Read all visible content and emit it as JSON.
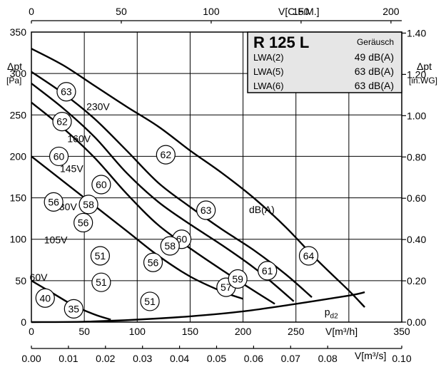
{
  "chart_data": {
    "type": "line",
    "title": "R 125 L",
    "noise_header": "Geräusch",
    "noise_table": [
      {
        "label": "LWA(2)",
        "value": "49 dB(A)"
      },
      {
        "label": "LWA(5)",
        "value": "63 dB(A)"
      },
      {
        "label": "LWA(6)",
        "value": "63 dB(A)"
      }
    ],
    "axes": {
      "bottom": {
        "label": "V[m³/h]",
        "range": [
          0,
          350
        ],
        "ticks": [
          0,
          50,
          100,
          150,
          200,
          250,
          350
        ]
      },
      "bottom2": {
        "label": "V[m³/s]",
        "range": [
          0,
          0.1
        ],
        "ticks": [
          "0.00",
          "0.01",
          "0.02",
          "0.03",
          "0.04",
          "0.05",
          "0.06",
          "0.07",
          "0.08",
          "0.10"
        ]
      },
      "top": {
        "label": "V[C.F.M.]",
        "range": [
          0,
          206
        ],
        "ticks": [
          0,
          50,
          100,
          150,
          200
        ]
      },
      "left": {
        "label": "Δpt",
        "unit": "[Pa]",
        "range": [
          0,
          350
        ],
        "ticks": [
          0,
          50,
          100,
          150,
          200,
          250,
          300,
          350
        ]
      },
      "right": {
        "label": "Δpt",
        "unit": "[in.WG]",
        "range": [
          0,
          1.405
        ],
        "ticks": [
          "0.00",
          "0.20",
          "0.40",
          "0.60",
          "0.80",
          "1.00",
          "1.20",
          "1.40"
        ]
      }
    },
    "grid": true,
    "series": [
      {
        "name": "230V",
        "points": [
          [
            0,
            330
          ],
          [
            30,
            310
          ],
          [
            60,
            285
          ],
          [
            90,
            260
          ],
          [
            120,
            236
          ],
          [
            150,
            207
          ],
          [
            180,
            180
          ],
          [
            210,
            150
          ],
          [
            240,
            115
          ],
          [
            270,
            75
          ],
          [
            300,
            38
          ],
          [
            315,
            18
          ]
        ]
      },
      {
        "name": "160V",
        "points": [
          [
            0,
            302
          ],
          [
            30,
            276
          ],
          [
            60,
            245
          ],
          [
            90,
            207
          ],
          [
            120,
            168
          ],
          [
            150,
            139
          ],
          [
            180,
            112
          ],
          [
            210,
            87
          ],
          [
            240,
            58
          ],
          [
            265,
            30
          ]
        ]
      },
      {
        "name": "145V",
        "points": [
          [
            0,
            288
          ],
          [
            30,
            258
          ],
          [
            60,
            223
          ],
          [
            90,
            180
          ],
          [
            120,
            145
          ],
          [
            150,
            118
          ],
          [
            180,
            93
          ],
          [
            210,
            66
          ],
          [
            230,
            45
          ],
          [
            248,
            25
          ]
        ]
      },
      {
        "name": "130V",
        "points": [
          [
            0,
            265
          ],
          [
            30,
            234
          ],
          [
            60,
            198
          ],
          [
            90,
            155
          ],
          [
            120,
            117
          ],
          [
            150,
            89
          ],
          [
            180,
            63
          ],
          [
            210,
            38
          ],
          [
            230,
            22
          ]
        ]
      },
      {
        "name": "105V",
        "points": [
          [
            0,
            200
          ],
          [
            30,
            170
          ],
          [
            60,
            140
          ],
          [
            90,
            110
          ],
          [
            120,
            80
          ],
          [
            150,
            55
          ],
          [
            180,
            37
          ],
          [
            200,
            28
          ]
        ]
      },
      {
        "name": "60V",
        "points": [
          [
            0,
            50
          ],
          [
            20,
            35
          ],
          [
            40,
            20
          ],
          [
            60,
            9
          ],
          [
            75,
            3
          ]
        ]
      },
      {
        "name": "pd2",
        "points": [
          [
            0,
            0
          ],
          [
            50,
            0.5
          ],
          [
            100,
            3
          ],
          [
            150,
            7
          ],
          [
            200,
            13
          ],
          [
            250,
            22
          ],
          [
            300,
            32
          ],
          [
            315,
            36
          ]
        ]
      }
    ],
    "series_labels": [
      {
        "text": "230V",
        "x": 63,
        "y": 256
      },
      {
        "text": "160V",
        "x": 45,
        "y": 217
      },
      {
        "text": "145V",
        "x": 38,
        "y": 181
      },
      {
        "text": "130V",
        "x": 32,
        "y": 135
      },
      {
        "text": "105V",
        "x": 23,
        "y": 95
      },
      {
        "text": "60V",
        "x": 0,
        "y": 50
      },
      {
        "text": "pd2",
        "x": 277,
        "y": 8
      }
    ],
    "sound_markers": [
      {
        "x": 33,
        "y": 278,
        "value": "63"
      },
      {
        "x": 29,
        "y": 242,
        "value": "62"
      },
      {
        "x": 26,
        "y": 200,
        "value": "60"
      },
      {
        "x": 21,
        "y": 145,
        "value": "56"
      },
      {
        "x": 66,
        "y": 166,
        "value": "60"
      },
      {
        "x": 54,
        "y": 142,
        "value": "58"
      },
      {
        "x": 49,
        "y": 120,
        "value": "56"
      },
      {
        "x": 65,
        "y": 80,
        "value": "51"
      },
      {
        "x": 66,
        "y": 48,
        "value": "51"
      },
      {
        "x": 127,
        "y": 202,
        "value": "62"
      },
      {
        "x": 165,
        "y": 135,
        "value": "63"
      },
      {
        "x": 142,
        "y": 100,
        "value": "60"
      },
      {
        "x": 131,
        "y": 92,
        "value": "58"
      },
      {
        "x": 115,
        "y": 72,
        "value": "56"
      },
      {
        "x": 112,
        "y": 25,
        "value": "51"
      },
      {
        "x": 184,
        "y": 42,
        "value": "57"
      },
      {
        "x": 195,
        "y": 52,
        "value": "59"
      },
      {
        "x": 223,
        "y": 62,
        "value": "61"
      },
      {
        "x": 262,
        "y": 80,
        "value": "64"
      },
      {
        "x": 13,
        "y": 29,
        "value": "40"
      },
      {
        "x": 40,
        "y": 16,
        "value": "35"
      }
    ],
    "annotation": "dB(A)"
  }
}
